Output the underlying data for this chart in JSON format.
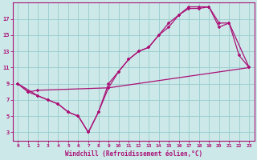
{
  "xlabel": "Windchill (Refroidissement éolien,°C)",
  "bg_color": "#cce8e8",
  "grid_color": "#99cccc",
  "line_color": "#aa1177",
  "xlim": [
    -0.5,
    23.5
  ],
  "ylim": [
    2,
    19
  ],
  "xticks": [
    0,
    1,
    2,
    3,
    4,
    5,
    6,
    7,
    8,
    9,
    10,
    11,
    12,
    13,
    14,
    15,
    16,
    17,
    18,
    19,
    20,
    21,
    22,
    23
  ],
  "yticks": [
    3,
    5,
    7,
    9,
    11,
    13,
    15,
    17
  ],
  "line1_x": [
    0,
    1,
    2,
    3,
    4,
    5,
    6,
    7,
    8,
    9,
    10,
    11,
    12,
    13,
    14,
    15,
    16,
    17,
    18,
    19,
    20,
    21,
    22,
    23
  ],
  "line1_y": [
    9.0,
    8.0,
    7.5,
    7.0,
    6.5,
    5.5,
    5.0,
    3.0,
    5.5,
    8.5,
    10.5,
    12.0,
    13.0,
    13.5,
    15.0,
    16.5,
    17.5,
    18.5,
    18.5,
    18.5,
    16.0,
    16.5,
    12.5,
    11.0
  ],
  "line2_x": [
    0,
    2,
    3,
    4,
    5,
    6,
    7,
    8,
    9,
    10,
    11,
    12,
    13,
    14,
    15,
    16,
    17,
    18,
    19,
    20,
    21,
    23
  ],
  "line2_y": [
    9.0,
    7.5,
    7.0,
    6.5,
    5.5,
    5.0,
    3.0,
    5.5,
    9.0,
    10.5,
    12.0,
    13.0,
    13.5,
    15.0,
    16.0,
    17.5,
    18.3,
    18.3,
    18.5,
    16.5,
    16.5,
    11.0
  ],
  "line3_x": [
    0,
    1,
    2,
    9,
    23
  ],
  "line3_y": [
    9.0,
    8.0,
    8.2,
    8.5,
    11.0
  ]
}
